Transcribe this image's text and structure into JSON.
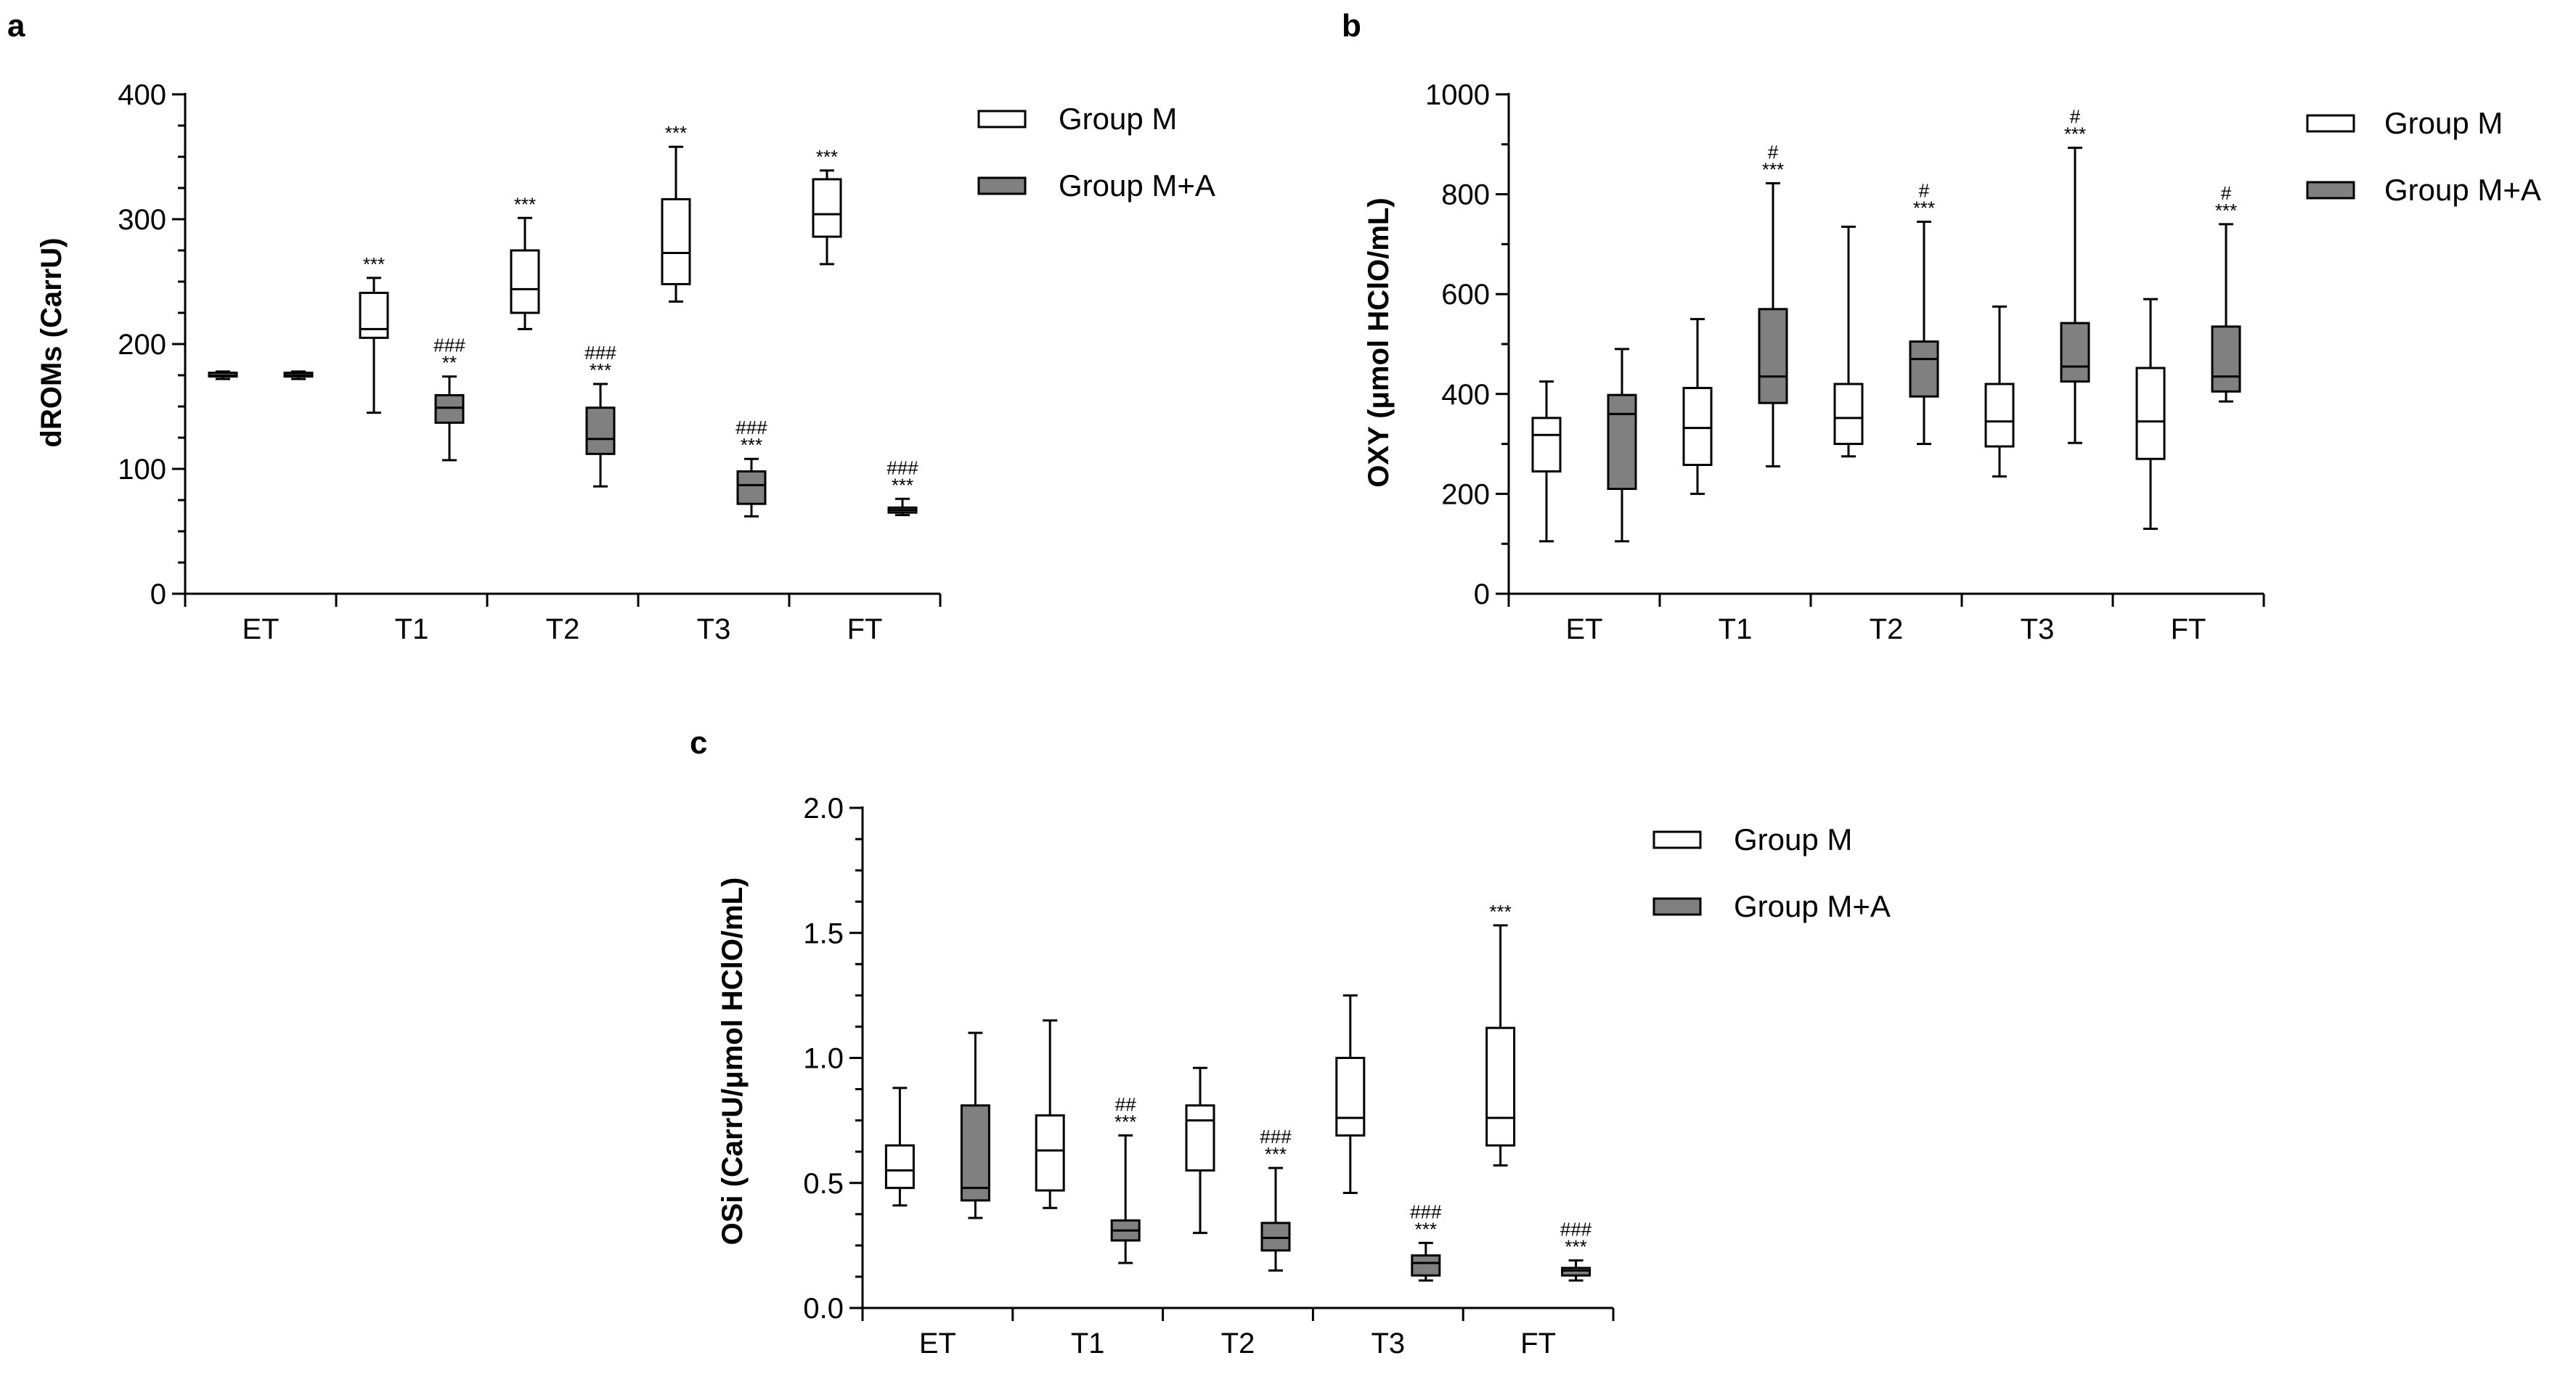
{
  "chart_data": [
    {
      "panel": "a",
      "type": "boxplot",
      "ylabel": "dROMs (CarrU)",
      "categories": [
        "ET",
        "T1",
        "T2",
        "T3",
        "FT"
      ],
      "ylim": [
        0,
        400
      ],
      "yticks": [
        0,
        100,
        200,
        300,
        400
      ],
      "yticks_labels": [
        "0",
        "100",
        "200",
        "300",
        "400"
      ],
      "legend": [
        "Group M",
        "Group M+A"
      ],
      "series": [
        {
          "name": "Group M",
          "color": "#ffffff",
          "boxes": [
            {
              "min": 172,
              "q1": 174,
              "median": 175,
              "q3": 177,
              "max": 178
            },
            {
              "min": 145,
              "q1": 205,
              "median": 212,
              "q3": 241,
              "max": 253
            },
            {
              "min": 212,
              "q1": 225,
              "median": 244,
              "q3": 275,
              "max": 301
            },
            {
              "min": 234,
              "q1": 248,
              "median": 273,
              "q3": 316,
              "max": 358
            },
            {
              "min": 264,
              "q1": 286,
              "median": 304,
              "q3": 332,
              "max": 339
            }
          ],
          "annotations": [
            [],
            [
              "***"
            ],
            [
              "***"
            ],
            [
              "***"
            ],
            [
              "***"
            ]
          ]
        },
        {
          "name": "Group M+A",
          "color": "#808080",
          "boxes": [
            {
              "min": 172,
              "q1": 174,
              "median": 175,
              "q3": 177,
              "max": 178
            },
            {
              "min": 107,
              "q1": 137,
              "median": 149,
              "q3": 159,
              "max": 174
            },
            {
              "min": 86,
              "q1": 112,
              "median": 124,
              "q3": 149,
              "max": 168
            },
            {
              "min": 62,
              "q1": 72,
              "median": 87,
              "q3": 98,
              "max": 108
            },
            {
              "min": 63,
              "q1": 65,
              "median": 67,
              "q3": 69,
              "max": 76
            }
          ],
          "annotations": [
            [],
            [
              "**",
              "###"
            ],
            [
              "***",
              "###"
            ],
            [
              "***",
              "###"
            ],
            [
              "***",
              "###"
            ]
          ]
        }
      ]
    },
    {
      "panel": "b",
      "type": "boxplot",
      "ylabel": "OXY (μmol HClO/mL)",
      "categories": [
        "ET",
        "T1",
        "T2",
        "T3",
        "FT"
      ],
      "ylim": [
        0,
        1000
      ],
      "yticks": [
        0,
        200,
        400,
        600,
        800,
        1000
      ],
      "yticks_labels": [
        "0",
        "200",
        "400",
        "600",
        "800",
        "1000"
      ],
      "legend": [
        "Group M",
        "Group M+A"
      ],
      "series": [
        {
          "name": "Group M",
          "color": "#ffffff",
          "boxes": [
            {
              "min": 105,
              "q1": 245,
              "median": 318,
              "q3": 352,
              "max": 425
            },
            {
              "min": 200,
              "q1": 258,
              "median": 332,
              "q3": 412,
              "max": 550
            },
            {
              "min": 275,
              "q1": 300,
              "median": 352,
              "q3": 420,
              "max": 735
            },
            {
              "min": 235,
              "q1": 295,
              "median": 345,
              "q3": 420,
              "max": 575
            },
            {
              "min": 130,
              "q1": 270,
              "median": 345,
              "q3": 452,
              "max": 590
            }
          ],
          "annotations": [
            [],
            [],
            [],
            [],
            []
          ]
        },
        {
          "name": "Group M+A",
          "color": "#808080",
          "boxes": [
            {
              "min": 105,
              "q1": 210,
              "median": 360,
              "q3": 398,
              "max": 490
            },
            {
              "min": 255,
              "q1": 382,
              "median": 435,
              "q3": 570,
              "max": 822
            },
            {
              "min": 300,
              "q1": 395,
              "median": 470,
              "q3": 505,
              "max": 745
            },
            {
              "min": 302,
              "q1": 425,
              "median": 455,
              "q3": 542,
              "max": 893
            },
            {
              "min": 385,
              "q1": 405,
              "median": 435,
              "q3": 535,
              "max": 740
            }
          ],
          "annotations": [
            [],
            [
              "***",
              "#"
            ],
            [
              "***",
              "#"
            ],
            [
              "***",
              "#"
            ],
            [
              "***",
              "#"
            ]
          ]
        }
      ]
    },
    {
      "panel": "c",
      "type": "boxplot",
      "ylabel": "OSi (CarrU/μmol HClO/mL)",
      "categories": [
        "ET",
        "T1",
        "T2",
        "T3",
        "FT"
      ],
      "ylim": [
        0,
        2.0
      ],
      "yticks": [
        0,
        0.5,
        1.0,
        1.5,
        2.0
      ],
      "yticks_labels": [
        "0.0",
        "0.5",
        "1.0",
        "1.5",
        "2.0"
      ],
      "legend": [
        "Group M",
        "Group M+A"
      ],
      "series": [
        {
          "name": "Group M",
          "color": "#ffffff",
          "boxes": [
            {
              "min": 0.41,
              "q1": 0.48,
              "median": 0.55,
              "q3": 0.65,
              "max": 0.88
            },
            {
              "min": 0.4,
              "q1": 0.47,
              "median": 0.63,
              "q3": 0.77,
              "max": 1.15
            },
            {
              "min": 0.3,
              "q1": 0.55,
              "median": 0.75,
              "q3": 0.81,
              "max": 0.96
            },
            {
              "min": 0.46,
              "q1": 0.69,
              "median": 0.76,
              "q3": 1.0,
              "max": 1.25
            },
            {
              "min": 0.57,
              "q1": 0.65,
              "median": 0.76,
              "q3": 1.12,
              "max": 1.53
            }
          ],
          "annotations": [
            [],
            [],
            [],
            [],
            [
              "***"
            ]
          ]
        },
        {
          "name": "Group M+A",
          "color": "#808080",
          "boxes": [
            {
              "min": 0.36,
              "q1": 0.43,
              "median": 0.48,
              "q3": 0.81,
              "max": 1.1
            },
            {
              "min": 0.18,
              "q1": 0.27,
              "median": 0.31,
              "q3": 0.35,
              "max": 0.69
            },
            {
              "min": 0.15,
              "q1": 0.23,
              "median": 0.28,
              "q3": 0.34,
              "max": 0.56
            },
            {
              "min": 0.11,
              "q1": 0.13,
              "median": 0.18,
              "q3": 0.21,
              "max": 0.26
            },
            {
              "min": 0.11,
              "q1": 0.13,
              "median": 0.15,
              "q3": 0.16,
              "max": 0.19
            }
          ],
          "annotations": [
            [],
            [
              "***",
              "##"
            ],
            [
              "***",
              "###"
            ],
            [
              "***",
              "###"
            ],
            [
              "***",
              "###"
            ]
          ]
        }
      ]
    }
  ]
}
